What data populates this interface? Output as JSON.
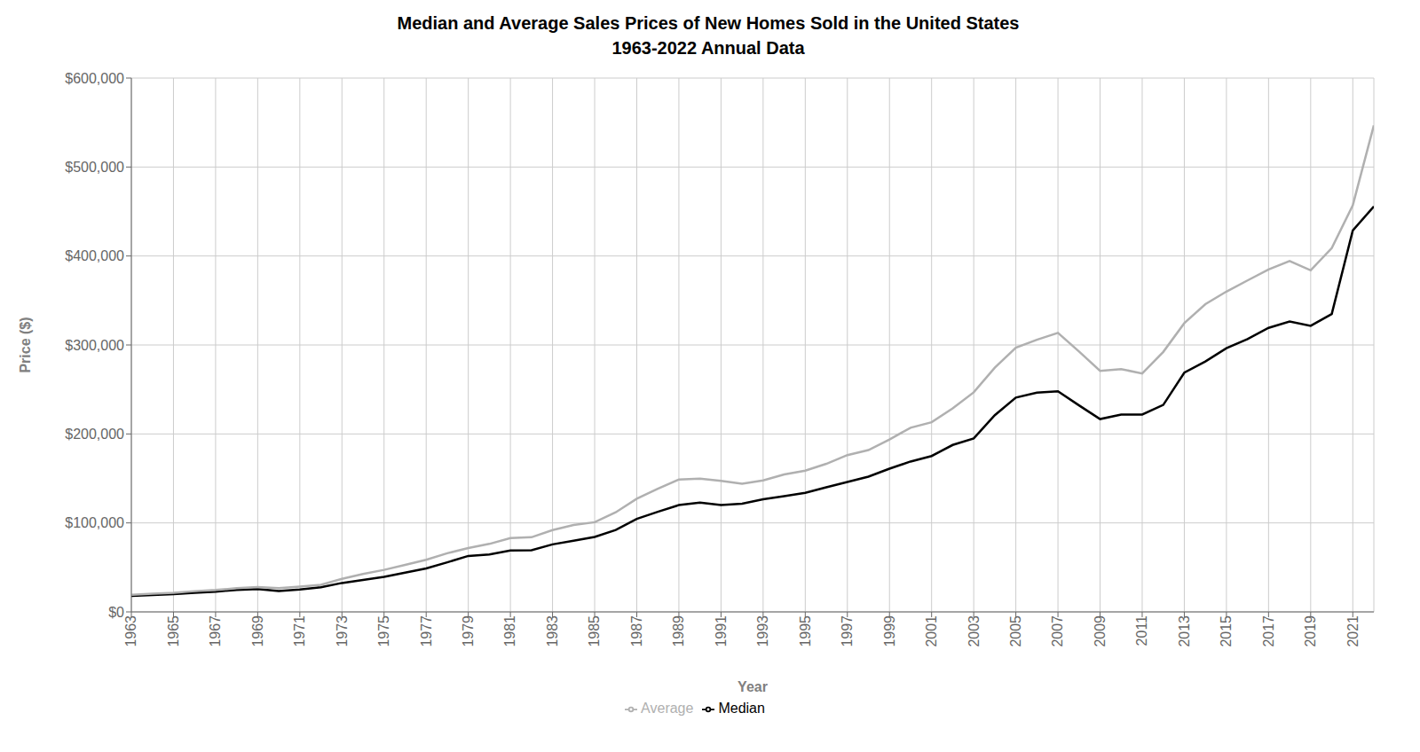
{
  "chart_data": {
    "type": "line",
    "title": "Median and Average Sales Prices of New Homes Sold in the United States",
    "subtitle": "1963-2022 Annual Data",
    "x_label": "Year",
    "y_label": "Price ($)",
    "x": [
      1963,
      1964,
      1965,
      1966,
      1967,
      1968,
      1969,
      1970,
      1971,
      1972,
      1973,
      1974,
      1975,
      1976,
      1977,
      1978,
      1979,
      1980,
      1981,
      1982,
      1983,
      1984,
      1985,
      1986,
      1987,
      1988,
      1989,
      1990,
      1991,
      1992,
      1993,
      1994,
      1995,
      1996,
      1997,
      1998,
      1999,
      2000,
      2001,
      2002,
      2003,
      2004,
      2005,
      2006,
      2007,
      2008,
      2009,
      2010,
      2011,
      2012,
      2013,
      2014,
      2015,
      2016,
      2017,
      2018,
      2019,
      2020,
      2021,
      2022
    ],
    "series": [
      {
        "name": "Median",
        "color": "#000000",
        "values": [
          18000,
          18900,
          20000,
          21400,
          22700,
          24700,
          25600,
          23400,
          25200,
          27600,
          32500,
          35900,
          39300,
          44200,
          48800,
          55700,
          62900,
          64600,
          68900,
          69300,
          75900,
          79900,
          84300,
          92000,
          104500,
          112500,
          120000,
          122900,
          120000,
          121500,
          126500,
          130000,
          133900,
          140000,
          146000,
          152000,
          161000,
          169000,
          175200,
          187600,
          195000,
          221000,
          240900,
          246500,
          247900,
          232100,
          216700,
          221800,
          221800,
          232600,
          268900,
          281400,
          296400,
          306700,
          319200,
          326400,
          321500,
          334800,
          428700,
          455700
        ]
      },
      {
        "name": "Average",
        "color": "#b0b0b0",
        "values": [
          19300,
          20500,
          21500,
          23300,
          24600,
          26600,
          27900,
          26600,
          28300,
          30500,
          37100,
          42600,
          47200,
          52800,
          58500,
          65900,
          71800,
          76400,
          83000,
          83900,
          92000,
          97600,
          100800,
          111900,
          127200,
          138300,
          148800,
          149800,
          147200,
          144100,
          147700,
          154500,
          158700,
          166400,
          176200,
          181900,
          193700,
          207000,
          213200,
          228700,
          246800,
          274500,
          297000,
          305900,
          313600,
          292600,
          270900,
          272900,
          267900,
          292200,
          324500,
          345800,
          360000,
          372500,
          384900,
          394300,
          383900,
          408800,
          457000,
          546800
        ]
      }
    ],
    "xlim": [
      1963,
      2022
    ],
    "xticks": [
      1963,
      1965,
      1967,
      1969,
      1971,
      1973,
      1975,
      1977,
      1979,
      1981,
      1983,
      1985,
      1987,
      1989,
      1991,
      1993,
      1995,
      1997,
      1999,
      2001,
      2003,
      2005,
      2007,
      2009,
      2011,
      2013,
      2015,
      2017,
      2019,
      2021
    ],
    "ylim": [
      0,
      600000
    ],
    "yticks": [
      {
        "value": 0,
        "label": "$0"
      },
      {
        "value": 100000,
        "label": "$100,000"
      },
      {
        "value": 200000,
        "label": "$200,000"
      },
      {
        "value": 300000,
        "label": "$300,000"
      },
      {
        "value": 400000,
        "label": "$400,000"
      },
      {
        "value": 500000,
        "label": "$500,000"
      },
      {
        "value": 600000,
        "label": "$600,000"
      }
    ],
    "grid": true,
    "legend": "bottom"
  }
}
